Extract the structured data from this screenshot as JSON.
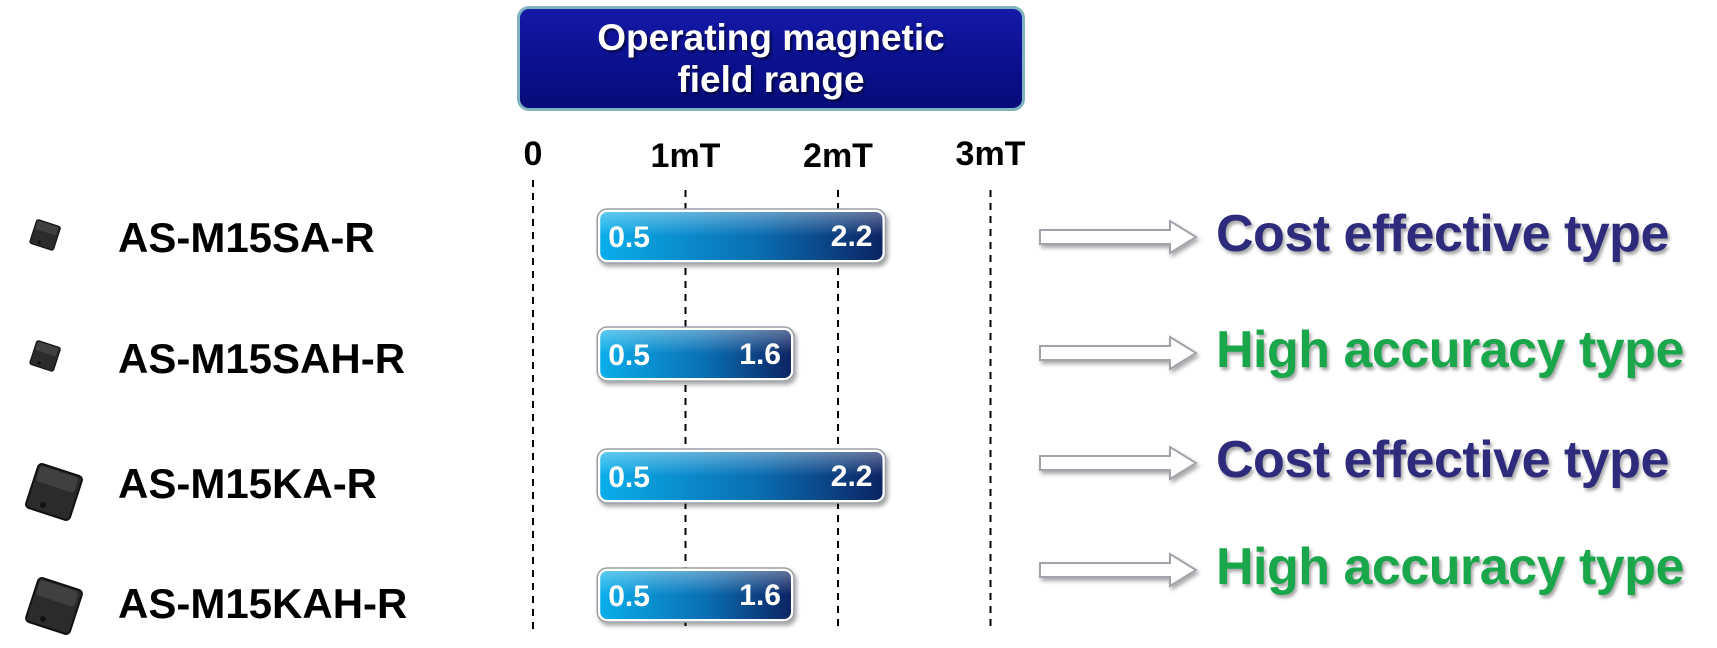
{
  "header": {
    "line1": "Operating magnetic",
    "line2": "field range"
  },
  "chart_data": {
    "type": "bar",
    "orientation": "horizontal-range",
    "x_ticks": [
      "0",
      "1mT",
      "2mT",
      "3mT"
    ],
    "xlim": [
      0,
      3
    ],
    "unit": "mT",
    "categories": [
      "AS-M15SA-R",
      "AS-M15SAH-R",
      "AS-M15KA-R",
      "AS-M15KAH-R"
    ],
    "ranges": [
      {
        "min": 0.5,
        "max": 2.2,
        "min_label": "0.5",
        "max_label": "2.2"
      },
      {
        "min": 0.5,
        "max": 1.6,
        "min_label": "0.5",
        "max_label": "1.6"
      },
      {
        "min": 0.5,
        "max": 2.2,
        "min_label": "0.5",
        "max_label": "2.2"
      },
      {
        "min": 0.5,
        "max": 1.6,
        "min_label": "0.5",
        "max_label": "1.6"
      }
    ],
    "grid": "dashed vertical lines at ticks"
  },
  "products": [
    {
      "name": "AS-M15SA-R",
      "package": "small",
      "type": "Cost effective type",
      "type_color": "#2e2a7c"
    },
    {
      "name": "AS-M15SAH-R",
      "package": "small",
      "type": "High accuracy type",
      "type_color": "#1aa64a"
    },
    {
      "name": "AS-M15KA-R",
      "package": "large",
      "type": "Cost effective type",
      "type_color": "#2e2a7c"
    },
    {
      "name": "AS-M15KAH-R",
      "package": "large",
      "type": "High accuracy type",
      "type_color": "#1aa64a"
    }
  ],
  "icons": {
    "chip": "chip-package-icon",
    "arrow": "arrow-right-icon"
  },
  "colors": {
    "bar_start": "#0aaeea",
    "bar_end": "#0c2463",
    "header_bg": "#0a0f8c",
    "header_border": "#7fb3bf"
  }
}
